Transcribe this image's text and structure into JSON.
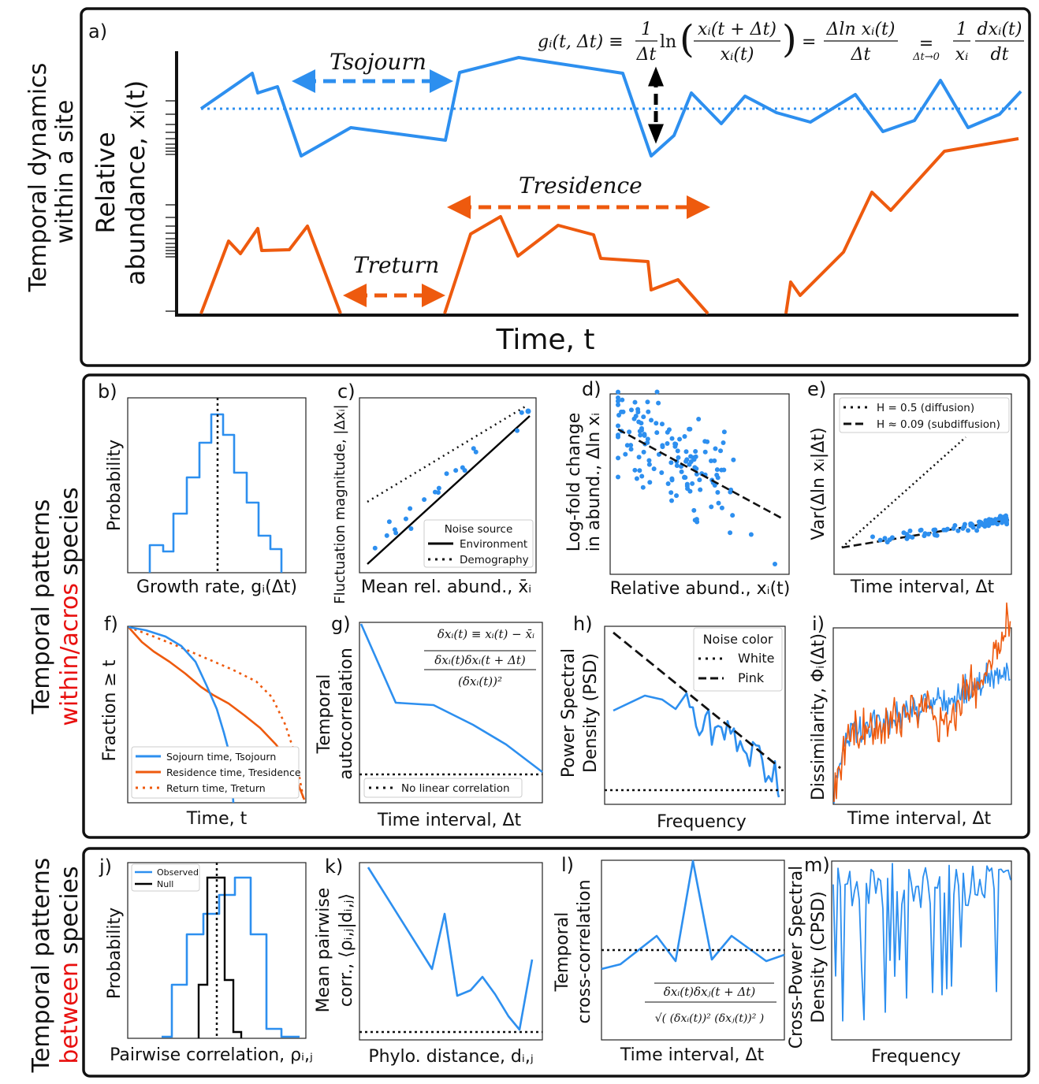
{
  "colors": {
    "blue": "#2d8fef",
    "orange": "#ee5a0e",
    "highlight_red": "#e8100f"
  },
  "panel_a": {
    "letter": "a)",
    "section_label_1": "Temporal dynamics",
    "section_label_2": "within a site",
    "ylabel_1": "Relative",
    "ylabel_2": "abundance, xᵢ(t)",
    "xlabel": "Time, t",
    "t_sojourn": "Tsojourn",
    "t_residence": "Tresidence",
    "t_return": "Treturn",
    "formula": {
      "lhs": "gᵢ(t, Δt) ≡",
      "f1_num": "1",
      "f1_den": "Δt",
      "ln": "ln",
      "f2_num": "xᵢ(t + Δt)",
      "f2_den": "xᵢ(t)",
      "eq": "=",
      "f3_num": "Δln xᵢ(t)",
      "f3_den": "Δt",
      "eq2": "=",
      "limit": "Δt→0",
      "f4_num": "1",
      "f4_den": "xᵢ",
      "f5_num": "dxᵢ(t)",
      "f5_den": "dt"
    }
  },
  "section2": {
    "label_1": "Temporal patterns",
    "label_2a": "within/acros",
    "label_2b": " species"
  },
  "section3": {
    "label_1": "Temporal patterns",
    "label_2a": "between",
    "label_2b": " species"
  },
  "panels": {
    "b": {
      "letter": "b)",
      "ylabel": "Probability",
      "xlabel": "Growth rate,  gᵢ(Δt)"
    },
    "c": {
      "letter": "c)",
      "ylabel": "Fluctuation magnitude, |Δxᵢ|",
      "xlabel": "Mean rel. abund., x̄ᵢ",
      "legend_title": "Noise source",
      "legend": [
        "Environment",
        "Demography"
      ]
    },
    "d": {
      "letter": "d)",
      "ylabel_1": "Log-fold change",
      "ylabel_2": "in abund., Δln xᵢ",
      "xlabel": "Relative abund., xᵢ(t)"
    },
    "e": {
      "letter": "e)",
      "ylabel": "Var(Δln xᵢ|Δt)",
      "xlabel": "Time interval, Δt",
      "legend": [
        "H = 0.5    (diffusion)",
        "H ≈ 0.09 (subdiffusion)"
      ]
    },
    "f": {
      "letter": "f)",
      "ylabel": "Fraction ≥ t",
      "xlabel": "Time, t",
      "legend": [
        "Sojourn time, Tsojourn",
        "Residence time, Tresidence",
        "Return time, Treturn"
      ]
    },
    "g": {
      "letter": "g)",
      "ylabel_1": "Temporal",
      "ylabel_2": "autocorrelation",
      "xlabel": "Time interval, Δt",
      "formula_1": "δxᵢ(t) ≡ xᵢ(t) − x̄ᵢ",
      "formula_num": "δxᵢ(t)δxᵢ(t + Δt)",
      "formula_den": "(δxᵢ(t))²",
      "legend": [
        "No linear correlation"
      ]
    },
    "h": {
      "letter": "h)",
      "ylabel_1": "Power Spectral",
      "ylabel_2": "Density (PSD)",
      "xlabel": "Frequency",
      "legend_title": "Noise color",
      "legend": [
        "White",
        "Pink"
      ]
    },
    "i": {
      "letter": "i)",
      "ylabel": "Dissimilarity, Φᵢ(Δt)",
      "xlabel": "Time interval, Δt"
    },
    "j": {
      "letter": "j)",
      "ylabel": "Probability",
      "xlabel": "Pairwise correlation, ρᵢ,ⱼ",
      "legend": [
        "Observed",
        "Null"
      ]
    },
    "k": {
      "letter": "k)",
      "ylabel_1": "Mean pairwise",
      "ylabel_2": "corr., ⟨ρᵢ,ⱼ|dᵢ,ⱼ⟩",
      "xlabel": "Phylo. distance, dᵢ,ⱼ"
    },
    "l": {
      "letter": "l)",
      "ylabel_1": "Temporal",
      "ylabel_2": "cross-correlation",
      "xlabel": "Time interval, Δt",
      "formula_num": "δxᵢ(t)δxⱼ(t + Δt)",
      "formula_den": "√( (δxᵢ(t))²  (δxⱼ(t))² )"
    },
    "m": {
      "letter": "m)",
      "ylabel_1": "Cross-Power Spectral",
      "ylabel_2": "Density (CPSD)",
      "xlabel": "Frequency"
    }
  }
}
